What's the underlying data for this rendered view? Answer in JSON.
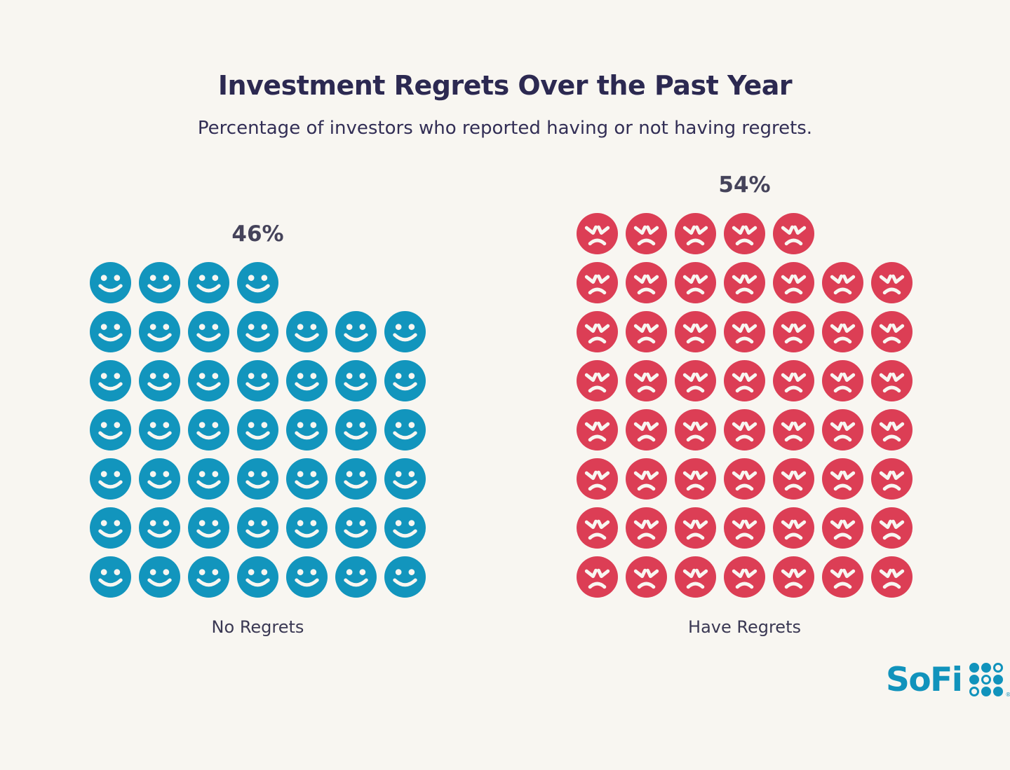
{
  "title": "Investment Regrets Over the Past Year",
  "subtitle": "Percentage of investors who reported having or not having regrets.",
  "chart_data": {
    "type": "pictograph",
    "title": "Investment Regrets Over the Past Year",
    "subtitle": "Percentage of investors who reported having or not having regrets.",
    "unit_per_icon": "1 face icon = 1% of investors",
    "categories": [
      "No Regrets",
      "Have Regrets"
    ],
    "values": [
      46,
      54
    ],
    "series": [
      {
        "name": "No Regrets",
        "value": 46,
        "value_label": "46%",
        "icon": "smiley-face",
        "color": "#1295BD",
        "rows": [
          4,
          7,
          7,
          7,
          7,
          7,
          7
        ]
      },
      {
        "name": "Have Regrets",
        "value": 54,
        "value_label": "54%",
        "icon": "angry-face",
        "color": "#DC3E55",
        "rows": [
          5,
          7,
          7,
          7,
          7,
          7,
          7,
          7
        ]
      }
    ],
    "legend": "none",
    "grid": "off"
  },
  "branding": {
    "logo_text": "SoFi",
    "registered_mark": "®",
    "dot_pattern": [
      "filled",
      "filled",
      "ring",
      "filled",
      "ring",
      "filled",
      "ring",
      "filled",
      "filled"
    ]
  },
  "colors": {
    "background": "#F8F6F1",
    "title": "#2C2951",
    "subtitle": "#322E55",
    "percent_label": "#45435A",
    "category_label": "#3A3853",
    "no_regrets_blue": "#1295BD",
    "have_regrets_red": "#DC3E55",
    "face_feature": "#F8F6F1",
    "logo_teal": "#1193BC"
  }
}
